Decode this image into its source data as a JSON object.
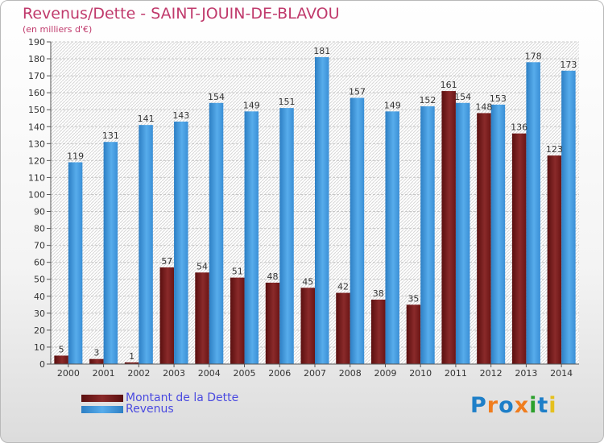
{
  "title": "Revenus/Dette - SAINT-JOUIN-DE-BLAVOU",
  "subtitle": "(en milliers d'€)",
  "chart_data": {
    "type": "bar",
    "categories": [
      "2000",
      "2001",
      "2002",
      "2003",
      "2004",
      "2005",
      "2006",
      "2007",
      "2008",
      "2009",
      "2010",
      "2011",
      "2012",
      "2013",
      "2014"
    ],
    "series": [
      {
        "name": "Montant de la Dette",
        "color": "#7d1d1d",
        "values": [
          5,
          3,
          1,
          57,
          54,
          51,
          48,
          45,
          42,
          38,
          35,
          161,
          148,
          136,
          123
        ]
      },
      {
        "name": "Revenus",
        "color": "#3a97e0",
        "values": [
          119,
          131,
          141,
          143,
          154,
          149,
          151,
          181,
          157,
          149,
          152,
          154,
          153,
          178,
          173
        ]
      }
    ],
    "ylim": [
      0,
      190
    ],
    "ytick_step": 10,
    "grid": true,
    "legend_position": "bottom-left"
  },
  "legend": {
    "debt_label": "Montant de la Dette",
    "revenue_label": "Revenus"
  },
  "logo_text": "Proxiti",
  "logo_colors": [
    "#1e7fc8",
    "#f07d1e",
    "#1e7fc8",
    "#f07d1e",
    "#2ca02c",
    "#1e7fc8",
    "#e5c01e"
  ]
}
